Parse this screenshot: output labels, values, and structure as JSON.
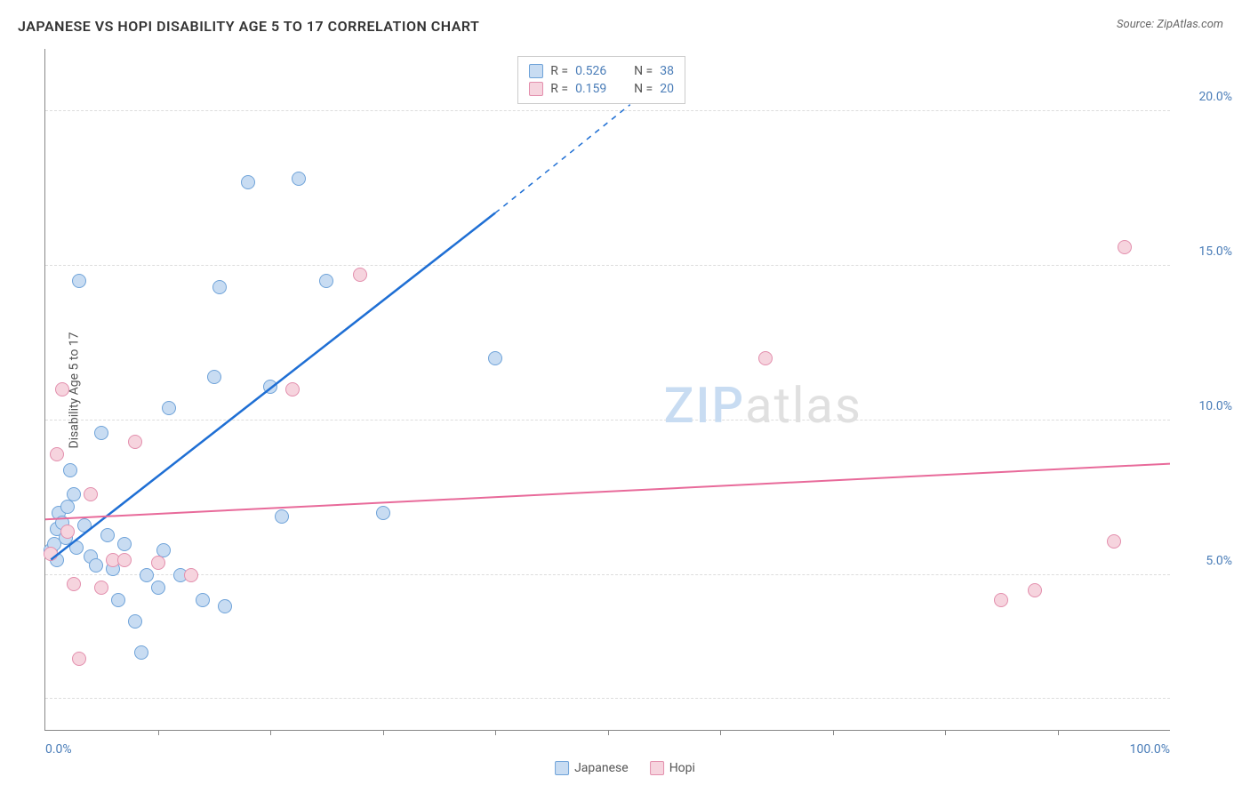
{
  "title": "JAPANESE VS HOPI DISABILITY AGE 5 TO 17 CORRELATION CHART",
  "source": "Source: ZipAtlas.com",
  "ylabel": "Disability Age 5 to 17",
  "watermark": {
    "zip": "ZIP",
    "atlas": "atlas"
  },
  "chart": {
    "type": "scatter",
    "xlim": [
      0,
      100
    ],
    "ylim": [
      0,
      22
    ],
    "xtick_labels": [
      {
        "pos": 0,
        "label": "0.0%"
      },
      {
        "pos": 100,
        "label": "100.0%"
      }
    ],
    "xtick_marks": [
      10,
      20,
      30,
      40,
      50,
      60,
      70,
      80,
      90
    ],
    "ytick_labels": [
      {
        "pos": 5,
        "label": "5.0%"
      },
      {
        "pos": 10,
        "label": "10.0%"
      },
      {
        "pos": 15,
        "label": "15.0%"
      },
      {
        "pos": 20,
        "label": "20.0%"
      }
    ],
    "gridlines_y": [
      1,
      5,
      10,
      15,
      20
    ],
    "background_color": "#ffffff",
    "grid_color": "#dddddd",
    "axis_color": "#888888",
    "tick_label_color": "#4a7db8",
    "marker_size": 16,
    "marker_border_width": 1.5,
    "series": [
      {
        "name": "Japanese",
        "fill": "#c8dcf2",
        "stroke": "#6fa3d9",
        "line_color": "#1f6fd4",
        "line_width": 2.5,
        "regression": {
          "x1": 0.5,
          "y1": 5.5,
          "x2": 40,
          "y2": 16.7,
          "x2_dash": 52,
          "y2_dash": 20.2
        },
        "correlation": {
          "R": "0.526",
          "N": "38"
        },
        "points": [
          [
            0.5,
            5.8
          ],
          [
            0.8,
            6.0
          ],
          [
            1.0,
            6.5
          ],
          [
            1.2,
            7.0
          ],
          [
            1.5,
            6.7
          ],
          [
            2.0,
            7.2
          ],
          [
            2.2,
            8.4
          ],
          [
            2.5,
            7.6
          ],
          [
            3.0,
            14.5
          ],
          [
            3.5,
            6.6
          ],
          [
            4.0,
            5.6
          ],
          [
            4.5,
            5.3
          ],
          [
            5.0,
            9.6
          ],
          [
            5.5,
            6.3
          ],
          [
            6.0,
            5.2
          ],
          [
            6.5,
            4.2
          ],
          [
            7.0,
            6.0
          ],
          [
            8.0,
            3.5
          ],
          [
            8.5,
            2.5
          ],
          [
            9.0,
            5.0
          ],
          [
            10.0,
            4.6
          ],
          [
            10.5,
            5.8
          ],
          [
            11.0,
            10.4
          ],
          [
            12.0,
            5.0
          ],
          [
            14.0,
            4.2
          ],
          [
            15.0,
            11.4
          ],
          [
            15.5,
            14.3
          ],
          [
            16.0,
            4.0
          ],
          [
            18.0,
            17.7
          ],
          [
            20.0,
            11.1
          ],
          [
            21.0,
            6.9
          ],
          [
            22.5,
            17.8
          ],
          [
            25.0,
            14.5
          ],
          [
            30.0,
            7.0
          ],
          [
            40.0,
            12.0
          ],
          [
            1.0,
            5.5
          ],
          [
            1.8,
            6.2
          ],
          [
            2.8,
            5.9
          ]
        ]
      },
      {
        "name": "Hopi",
        "fill": "#f6d4de",
        "stroke": "#e38fad",
        "line_color": "#e86a9a",
        "line_width": 2,
        "regression": {
          "x1": 0,
          "y1": 6.8,
          "x2": 100,
          "y2": 8.6
        },
        "correlation": {
          "R": "0.159",
          "N": "20"
        },
        "points": [
          [
            0.5,
            5.7
          ],
          [
            1.0,
            8.9
          ],
          [
            1.5,
            11.0
          ],
          [
            2.0,
            6.4
          ],
          [
            2.5,
            4.7
          ],
          [
            3.0,
            2.3
          ],
          [
            4.0,
            7.6
          ],
          [
            5.0,
            4.6
          ],
          [
            6.0,
            5.5
          ],
          [
            7.0,
            5.5
          ],
          [
            8.0,
            9.3
          ],
          [
            10.0,
            5.4
          ],
          [
            13.0,
            5.0
          ],
          [
            22.0,
            11.0
          ],
          [
            28.0,
            14.7
          ],
          [
            64.0,
            12.0
          ],
          [
            85.0,
            4.2
          ],
          [
            88.0,
            4.5
          ],
          [
            95.0,
            6.1
          ],
          [
            96.0,
            15.6
          ]
        ]
      }
    ]
  },
  "legend_bottom": [
    {
      "label": "Japanese",
      "fill": "#c8dcf2",
      "stroke": "#6fa3d9"
    },
    {
      "label": "Hopi",
      "fill": "#f6d4de",
      "stroke": "#e38fad"
    }
  ]
}
